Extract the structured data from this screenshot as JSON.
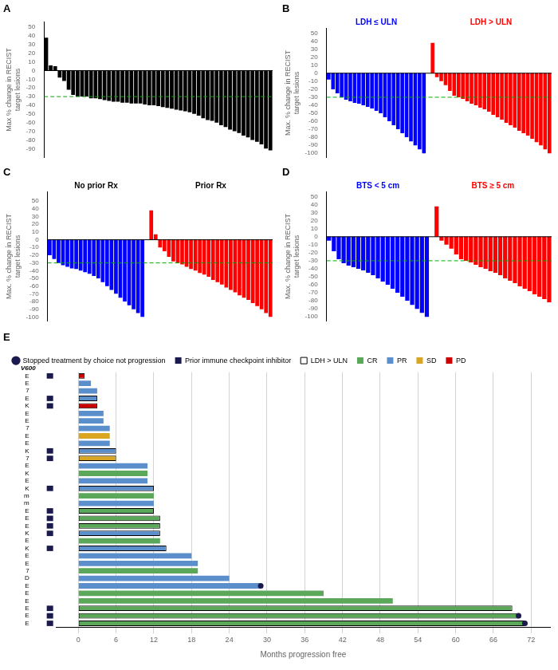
{
  "chart_data": [
    {
      "type": "bar",
      "title": "A",
      "ylabel": "Max % change in RECIST\ntarget lesions",
      "series": [
        {
          "color": "#000000",
          "values": [
            38,
            6,
            5,
            -8,
            -12,
            -22,
            -28,
            -30,
            -30,
            -30,
            -32,
            -32,
            -33,
            -34,
            -35,
            -36,
            -36,
            -37,
            -37,
            -38,
            -38,
            -38,
            -39,
            -40,
            -40,
            -41,
            -42,
            -43,
            -44,
            -45,
            -46,
            -47,
            -48,
            -50,
            -52,
            -55,
            -57,
            -58,
            -60,
            -63,
            -65,
            -68,
            -70,
            -72,
            -75,
            -77,
            -80,
            -82,
            -85,
            -90,
            -92
          ]
        }
      ],
      "ylim": [
        -100,
        56
      ],
      "yticks": [
        50,
        40,
        30,
        20,
        10,
        0,
        -10,
        -20,
        -30,
        -40,
        -50,
        -60,
        -70,
        -80,
        -90
      ],
      "grid": false,
      "tick_labels": "y",
      "hlines": [
        {
          "value": 0,
          "color": "#000000"
        },
        {
          "value": -30,
          "color": "#00AA00",
          "line_style": "dashed"
        }
      ]
    },
    {
      "type": "bar",
      "title": "B",
      "ylabel": "Max. % change in RECIST\ntarget lesions",
      "series": [
        {
          "color": "#0000FF",
          "values": [
            -8,
            -20,
            -25,
            -30,
            -33,
            -35,
            -37,
            -38,
            -40,
            -42,
            -44,
            -47,
            -50,
            -55,
            -60,
            -65,
            -70,
            -75,
            -80,
            -85,
            -90,
            -95,
            -100
          ]
        },
        {
          "color": "#FF0000",
          "values": [
            38,
            -5,
            -10,
            -15,
            -22,
            -28,
            -30,
            -32,
            -35,
            -38,
            -40,
            -43,
            -45,
            -48,
            -52,
            -55,
            -58,
            -62,
            -65,
            -68,
            -72,
            -75,
            -78,
            -82,
            -86,
            -90,
            -95,
            -100
          ]
        }
      ],
      "annotations": [
        {
          "text": "LDH ≤ ULN",
          "color": "#0000FF"
        },
        {
          "text": "LDH > ULN",
          "color": "#FF0000"
        }
      ],
      "ylim": [
        -105,
        56
      ],
      "yticks": [
        50,
        40,
        30,
        20,
        10,
        0,
        -10,
        -20,
        -30,
        -40,
        -50,
        -60,
        -70,
        -80,
        -90,
        -100
      ],
      "grid": false,
      "tick_labels": "y",
      "hlines": [
        {
          "value": 0,
          "color": "#000000"
        },
        {
          "value": -30,
          "color": "#00AA00",
          "line_style": "dashed"
        }
      ]
    },
    {
      "type": "bar",
      "title": "C",
      "ylabel": "Max. % change in RECIST\ntarget lesions",
      "series": [
        {
          "color": "#0000FF",
          "values": [
            -20,
            -25,
            -30,
            -33,
            -35,
            -37,
            -38,
            -40,
            -42,
            -44,
            -47,
            -50,
            -55,
            -60,
            -65,
            -70,
            -75,
            -80,
            -85,
            -90,
            -95,
            -100
          ]
        },
        {
          "color": "#FF0000",
          "values": [
            38,
            7,
            -10,
            -15,
            -22,
            -28,
            -30,
            -32,
            -35,
            -38,
            -40,
            -43,
            -45,
            -48,
            -52,
            -55,
            -58,
            -62,
            -65,
            -68,
            -72,
            -75,
            -78,
            -82,
            -86,
            -90,
            -95,
            -100
          ]
        }
      ],
      "annotations": [
        {
          "text": "No prior Rx",
          "color": "#000000"
        },
        {
          "text": "Prior Rx",
          "color": "#000000"
        }
      ],
      "ylim": [
        -105,
        62
      ],
      "yticks": [
        50,
        40,
        30,
        20,
        10,
        0,
        -10,
        -20,
        -30,
        -40,
        -50,
        -60,
        -70,
        -80,
        -90,
        -100
      ],
      "grid": false,
      "tick_labels": "y",
      "hlines": [
        {
          "value": 0,
          "color": "#000000"
        },
        {
          "value": -30,
          "color": "#00AA00",
          "line_style": "dashed"
        }
      ]
    },
    {
      "type": "bar",
      "title": "D",
      "ylabel": "Max. % change in RECIST\ntarget lesions",
      "series": [
        {
          "color": "#0000FF",
          "values": [
            -5,
            -18,
            -28,
            -33,
            -36,
            -38,
            -40,
            -42,
            -45,
            -48,
            -52,
            -56,
            -60,
            -65,
            -70,
            -75,
            -80,
            -85,
            -90,
            -95,
            -100
          ]
        },
        {
          "color": "#FF0000",
          "values": [
            38,
            -5,
            -10,
            -15,
            -22,
            -28,
            -30,
            -32,
            -35,
            -38,
            -40,
            -43,
            -45,
            -48,
            -52,
            -55,
            -58,
            -62,
            -65,
            -68,
            -72,
            -75,
            -78,
            -82
          ]
        }
      ],
      "annotations": [
        {
          "text": "BTS < 5 cm",
          "color": "#0000FF"
        },
        {
          "text": "BTS ≥ 5 cm",
          "color": "#FF0000"
        }
      ],
      "ylim": [
        -105,
        56
      ],
      "yticks": [
        50,
        40,
        30,
        20,
        10,
        0,
        -10,
        -20,
        -30,
        -40,
        -50,
        -60,
        -70,
        -80,
        -90,
        -100
      ],
      "grid": false,
      "tick_labels": "y",
      "hlines": [
        {
          "value": 0,
          "color": "#000000"
        },
        {
          "value": -30,
          "color": "#00AA00",
          "line_style": "dashed"
        }
      ]
    },
    {
      "type": "bar",
      "orientation": "horizontal",
      "title": "E",
      "xlabel": "Months progression free",
      "ylabel": "V600",
      "categories": [
        "E",
        "E",
        "E",
        "E",
        "E",
        "E",
        "D",
        "7",
        "E",
        "E",
        "K",
        "E",
        "K",
        "E",
        "E",
        "E",
        "m",
        "m",
        "K",
        "E",
        "K",
        "E",
        "7",
        "K",
        "E",
        "E",
        "7",
        "E",
        "E",
        "K",
        "E",
        "7",
        "E",
        "E"
      ],
      "values": [
        71,
        70,
        69,
        50,
        39,
        29,
        24,
        19,
        19,
        18,
        14,
        13,
        13,
        13,
        13,
        12,
        12,
        12,
        12,
        11,
        11,
        11,
        6,
        6,
        5,
        5,
        5,
        4,
        4,
        3,
        3,
        3,
        2,
        1
      ],
      "colors": [
        "#5BA85A",
        "#5BA85A",
        "#5BA85A",
        "#5BA85A",
        "#5BA85A",
        "#5B8FCC",
        "#5B8FCC",
        "#5BA85A",
        "#5B8FCC",
        "#5B8FCC",
        "#5B8FCC",
        "#5BA85A",
        "#5B8FCC",
        "#5BA85A",
        "#5BA85A",
        "#5BA85A",
        "#5B8FCC",
        "#5BA85A",
        "#5B8FCC",
        "#5B8FCC",
        "#5BA85A",
        "#5B8FCC",
        "#DAA520",
        "#5B8FCC",
        "#5B8FCC",
        "#DAA520",
        "#5B8FCC",
        "#5B8FCC",
        "#5B8FCC",
        "#CC0000",
        "#5B8FCC",
        "#5B8FCC",
        "#5B8FCC",
        "#CC0000"
      ],
      "flags": [
        {
          "name": "Stopped treatment by choice not progression",
          "color": "#1a1a4e",
          "marker": "circle",
          "values": [
            true,
            true,
            false,
            false,
            false,
            true,
            false,
            false,
            false,
            false,
            false,
            false,
            false,
            false,
            false,
            false,
            false,
            false,
            false,
            false,
            false,
            false,
            false,
            false,
            false,
            false,
            false,
            false,
            false,
            false,
            false,
            false,
            false,
            false
          ]
        },
        {
          "name": "Prior immune checkpoint inhibitor",
          "color": "#1a1a4e",
          "marker": "square",
          "values": [
            true,
            true,
            true,
            false,
            false,
            false,
            false,
            false,
            false,
            false,
            true,
            false,
            true,
            true,
            true,
            true,
            false,
            false,
            true,
            false,
            false,
            false,
            true,
            true,
            false,
            false,
            false,
            false,
            false,
            true,
            true,
            false,
            false,
            true
          ]
        },
        {
          "name": "LDH > ULN",
          "color": "#000000",
          "marker": "open_square",
          "values": [
            false,
            false,
            false,
            false,
            false,
            false,
            false,
            false,
            false,
            false,
            false,
            false,
            false,
            false,
            false,
            false,
            false,
            false,
            false,
            false,
            false,
            false,
            false,
            false,
            false,
            false,
            false,
            false,
            false,
            false,
            false,
            false,
            false,
            false
          ]
        }
      ],
      "responses": [
        {
          "name": "CR",
          "color": "#5BA85A"
        },
        {
          "name": "PR",
          "color": "#5B8FCC"
        },
        {
          "name": "SD",
          "color": "#DAA520"
        },
        {
          "name": "PD",
          "color": "#CC0000"
        }
      ],
      "xlim": [
        -3.5,
        75
      ],
      "xticks": [
        0,
        6,
        12,
        18,
        24,
        30,
        36,
        42,
        48,
        54,
        60,
        66,
        72
      ],
      "grid": "x",
      "legend": "upper left"
    }
  ]
}
